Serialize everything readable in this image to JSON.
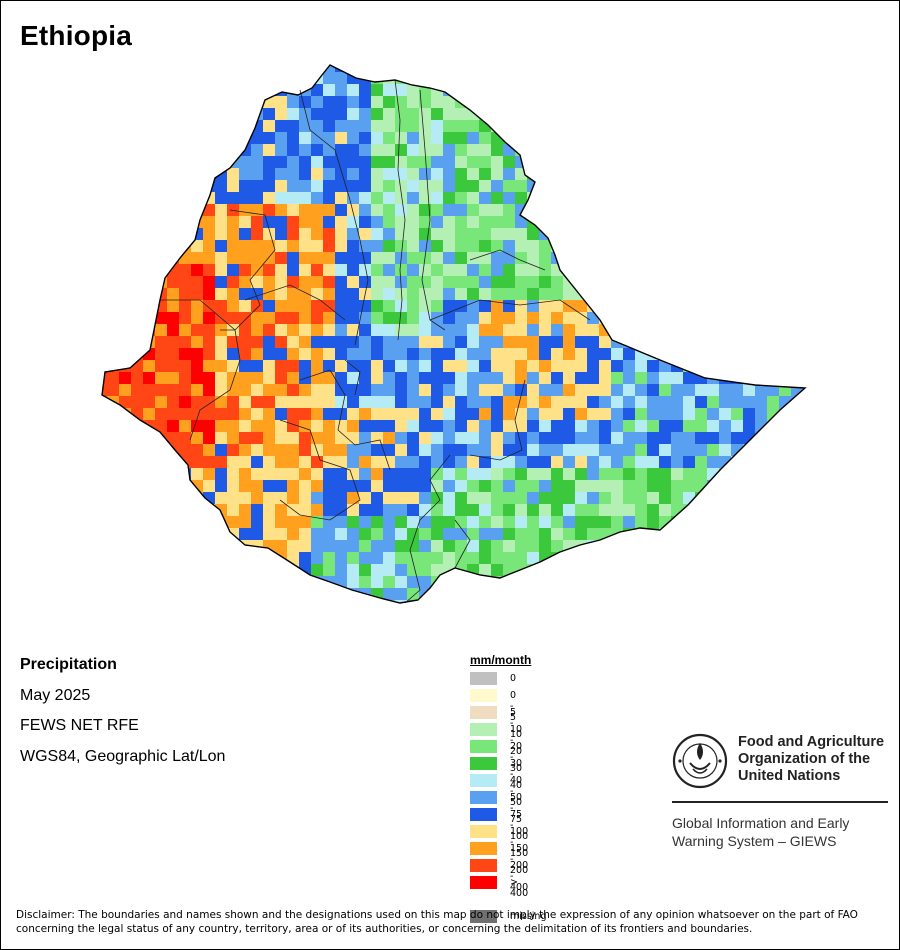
{
  "title": "Ethiopia",
  "info": {
    "variable": "Precipitation",
    "period": "May 2025",
    "source": "FEWS NET RFE",
    "projection": "WGS84, Geographic Lat/Lon"
  },
  "legend": {
    "unit_title": "mm/month",
    "classes": [
      {
        "label": "0",
        "color": "#c0c0c0"
      },
      {
        "label": "0 - 5",
        "color": "#fffacd"
      },
      {
        "label": "5 - 10",
        "color": "#f0dcc0"
      },
      {
        "label": "10 - 20",
        "color": "#b4f0b4"
      },
      {
        "label": "20 - 30",
        "color": "#78e678"
      },
      {
        "label": "30 - 40",
        "color": "#3cc83c"
      },
      {
        "label": "40 - 50",
        "color": "#b4ebf5"
      },
      {
        "label": "50 - 75",
        "color": "#5aa0f0"
      },
      {
        "label": "75 - 100",
        "color": "#1e5ae6"
      },
      {
        "label": "100 - 150",
        "color": "#ffe187"
      },
      {
        "label": "150 - 200",
        "color": "#ffa01e"
      },
      {
        "label": "200 - 400",
        "color": "#ff4614"
      },
      {
        "label": "> 400",
        "color": "#ff0000"
      }
    ],
    "missing": {
      "label": "missing",
      "color": "#707070"
    }
  },
  "logo": {
    "icon": "fao-emblem-icon",
    "org_lines": [
      "Food and Agriculture",
      "Organization of the",
      "United Nations"
    ],
    "program_lines": [
      "Global Information and Early",
      "Warning System – GIEWS"
    ]
  },
  "disclaimer": "Disclaimer: The boundaries and names shown and the designations used on this map do not imply the expression of any opinion whatsoever on the part of FAO concerning the legal status of any country, territory, area or of its authorities, or concerning the delimitation of its frontiers and boundaries."
}
